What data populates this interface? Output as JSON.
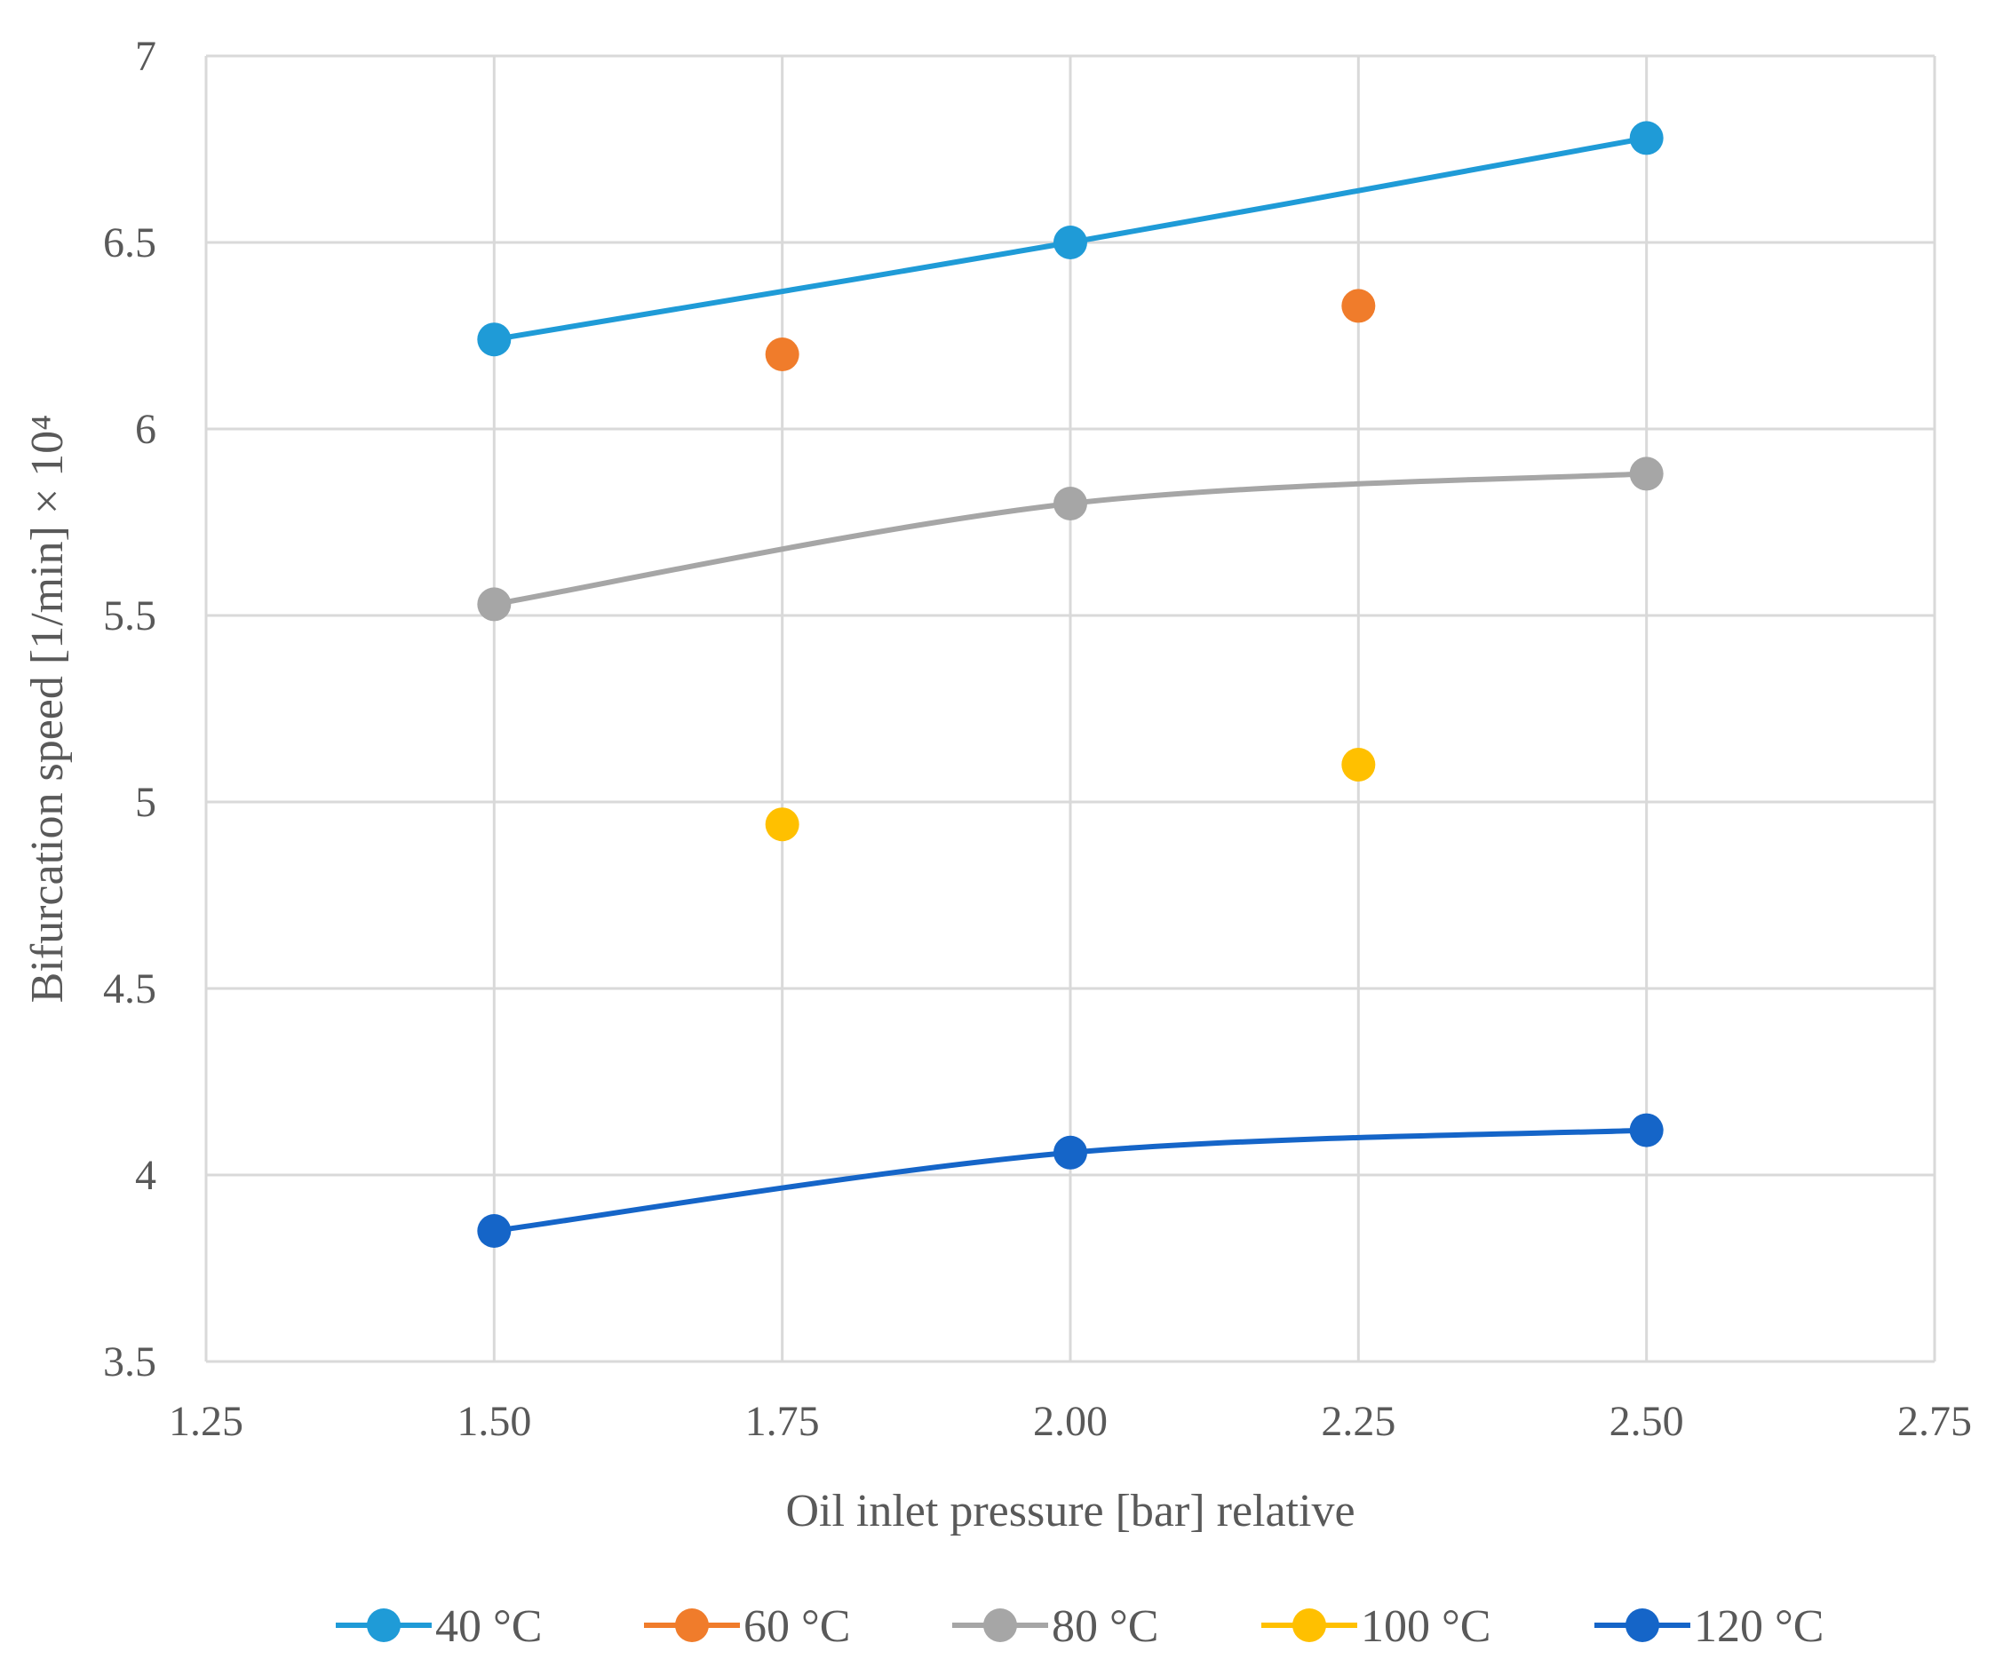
{
  "chart_data": {
    "type": "scatter",
    "title": "",
    "xlabel": "Oil inlet pressure [bar] relative",
    "ylabel": "Bifurcation speed [1/min] × 10⁴",
    "xlim": [
      1.25,
      2.75
    ],
    "ylim": [
      3.5,
      7
    ],
    "x_ticks": [
      "1.25",
      "1.50",
      "1.75",
      "2.00",
      "2.25",
      "2.50",
      "2.75"
    ],
    "y_ticks": [
      "3.5",
      "4",
      "4.5",
      "5",
      "5.5",
      "6",
      "6.5",
      "7"
    ],
    "grid": true,
    "legend_position": "bottom",
    "series": [
      {
        "name": "40 °C",
        "color": "#1f9bd7",
        "line": true,
        "x": [
          1.5,
          2.0,
          2.5
        ],
        "y": [
          6.24,
          6.5,
          6.78
        ]
      },
      {
        "name": "60 °C",
        "color": "#f07c2b",
        "line": false,
        "x": [
          1.75,
          2.25
        ],
        "y": [
          6.2,
          6.33
        ]
      },
      {
        "name": "80 °C",
        "color": "#a6a6a6",
        "line": true,
        "x": [
          1.5,
          2.0,
          2.5
        ],
        "y": [
          5.53,
          5.8,
          5.88
        ]
      },
      {
        "name": "100 °C",
        "color": "#ffc000",
        "line": false,
        "x": [
          1.75,
          2.25
        ],
        "y": [
          4.94,
          5.1
        ]
      },
      {
        "name": "120 °C",
        "color": "#1565c8",
        "line": true,
        "x": [
          1.5,
          2.0,
          2.5
        ],
        "y": [
          3.85,
          4.06,
          4.12
        ]
      }
    ]
  }
}
